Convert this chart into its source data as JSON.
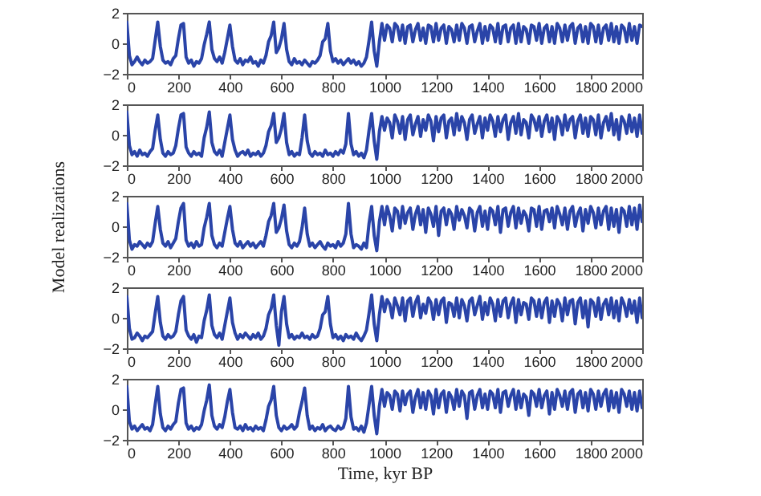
{
  "chart_data": [
    {
      "type": "line",
      "color": "#2a44a8",
      "xlim": [
        0,
        2000
      ],
      "ylim": [
        -2,
        2
      ],
      "xticks": [
        0,
        200,
        400,
        600,
        800,
        1000,
        1200,
        1400,
        1600,
        1800,
        2000
      ],
      "yticks": [
        -2,
        0,
        2
      ],
      "x": [
        0,
        10,
        20,
        30,
        40,
        50,
        60,
        70,
        80,
        90,
        100,
        110,
        120,
        130,
        140,
        150,
        160,
        170,
        180,
        190,
        200,
        210,
        220,
        230,
        240,
        250,
        260,
        270,
        280,
        290,
        300,
        310,
        320,
        330,
        340,
        350,
        360,
        370,
        380,
        390,
        400,
        410,
        420,
        430,
        440,
        450,
        460,
        470,
        480,
        490,
        500,
        510,
        520,
        530,
        540,
        550,
        560,
        570,
        580,
        590,
        600,
        610,
        620,
        630,
        640,
        650,
        660,
        670,
        680,
        690,
        700,
        710,
        720,
        730,
        740,
        750,
        760,
        770,
        780,
        790,
        800,
        810,
        820,
        830,
        840,
        850,
        860,
        870,
        880,
        890,
        900,
        910,
        920,
        930,
        940,
        950,
        960,
        970,
        980,
        990,
        1000,
        1010,
        1020,
        1030,
        1040,
        1050,
        1060,
        1070,
        1080,
        1090,
        1100,
        1110,
        1120,
        1130,
        1140,
        1150,
        1160,
        1170,
        1180,
        1190,
        1200,
        1210,
        1220,
        1230,
        1240,
        1250,
        1260,
        1270,
        1280,
        1290,
        1300,
        1310,
        1320,
        1330,
        1340,
        1350,
        1360,
        1370,
        1380,
        1390,
        1400,
        1410,
        1420,
        1430,
        1440,
        1450,
        1460,
        1470,
        1480,
        1490,
        1500,
        1510,
        1520,
        1530,
        1540,
        1550,
        1560,
        1570,
        1580,
        1590,
        1600,
        1610,
        1620,
        1630,
        1640,
        1650,
        1660,
        1670,
        1680,
        1690,
        1700,
        1710,
        1720,
        1730,
        1740,
        1750,
        1760,
        1770,
        1780,
        1790,
        1800,
        1810,
        1820,
        1830,
        1840,
        1850,
        1860,
        1870,
        1880,
        1890,
        1900,
        1910,
        1920,
        1930,
        1940,
        1950,
        1960,
        1970,
        1980,
        1990,
        2000
      ],
      "values": [
        1.4,
        -0.8,
        -1.4,
        -1.2,
        -0.9,
        -1.2,
        -1.4,
        -1.1,
        -1.3,
        -1.2,
        -1.0,
        0.2,
        1.4,
        -0.2,
        -1.1,
        -1.3,
        -1.2,
        -1.4,
        -1.0,
        -0.8,
        0.3,
        1.2,
        1.3,
        -0.9,
        -1.3,
        -1.1,
        -1.5,
        -1.2,
        -1.3,
        -1.0,
        -0.1,
        0.6,
        1.4,
        -0.4,
        -1.0,
        -1.2,
        -0.9,
        -1.3,
        -0.6,
        0.3,
        1.2,
        -0.2,
        -1.1,
        -1.3,
        -1.0,
        -1.4,
        -1.1,
        -1.2,
        -0.9,
        -1.3,
        -1.2,
        -1.5,
        -1.1,
        -1.3,
        -0.8,
        0.1,
        0.5,
        1.4,
        -0.6,
        -0.3,
        0.3,
        1.3,
        -0.4,
        -1.2,
        -1.4,
        -1.0,
        -1.3,
        -1.2,
        -1.4,
        -1.1,
        -1.3,
        -1.5,
        -1.2,
        -1.3,
        -1.1,
        -0.8,
        0.1,
        0.3,
        1.3,
        -0.5,
        -1.2,
        -1.0,
        -1.3,
        -1.1,
        -1.4,
        -1.2,
        -1.0,
        -1.3,
        -1.1,
        -1.4,
        -1.2,
        -1.5,
        -1.3,
        -0.9,
        0.2,
        1.4,
        -0.5,
        -1.5,
        0.1,
        1.3,
        0.2,
        1.2,
        1.0,
        0.1,
        1.3,
        1.1,
        0.2,
        1.2,
        0.0,
        1.1,
        1.2,
        0.1,
        0.9,
        1.3,
        0.2,
        1.0,
        0.0,
        1.2,
        1.1,
        0.1,
        1.3,
        0.2,
        1.0,
        1.2,
        0.0,
        1.1,
        0.9,
        0.1,
        1.2,
        0.2,
        1.3,
        1.0,
        0.0,
        1.1,
        1.2,
        0.1,
        0.8,
        1.3,
        0.0,
        1.1,
        0.2,
        1.2,
        1.0,
        0.1,
        1.3,
        0.0,
        1.1,
        1.2,
        0.1,
        1.0,
        1.2,
        0.0,
        1.3,
        0.1,
        1.1,
        0.9,
        0.0,
        1.2,
        1.1,
        0.2,
        1.3,
        0.0,
        1.0,
        1.2,
        0.1,
        1.1,
        0.0,
        1.3,
        1.0,
        0.1,
        1.2,
        0.2,
        1.1,
        1.3,
        0.0,
        1.0,
        1.2,
        0.1,
        1.1,
        0.0,
        1.3,
        1.1,
        0.1,
        1.2,
        0.0,
        1.0,
        1.2,
        0.2,
        1.3,
        0.1,
        1.1,
        0.0,
        1.2,
        1.0,
        0.1,
        1.3,
        0.2,
        1.1,
        0.0,
        1.2,
        1.1
      ]
    },
    {
      "type": "line",
      "color": "#2a44a8",
      "xlim": [
        0,
        2000
      ],
      "ylim": [
        -2,
        2
      ],
      "xticks": [
        0,
        200,
        400,
        600,
        800,
        1000,
        1200,
        1400,
        1600,
        1800,
        2000
      ],
      "yticks": [
        -2,
        0,
        2
      ],
      "x": [
        0,
        10,
        20,
        30,
        40,
        50,
        60,
        70,
        80,
        90,
        100,
        110,
        120,
        130,
        140,
        150,
        160,
        170,
        180,
        190,
        200,
        210,
        220,
        230,
        240,
        250,
        260,
        270,
        280,
        290,
        300,
        310,
        320,
        330,
        340,
        350,
        360,
        370,
        380,
        390,
        400,
        410,
        420,
        430,
        440,
        450,
        460,
        470,
        480,
        490,
        500,
        510,
        520,
        530,
        540,
        550,
        560,
        570,
        580,
        590,
        600,
        610,
        620,
        630,
        640,
        650,
        660,
        670,
        680,
        690,
        700,
        710,
        720,
        730,
        740,
        750,
        760,
        770,
        780,
        790,
        800,
        810,
        820,
        830,
        840,
        850,
        860,
        870,
        880,
        890,
        900,
        910,
        920,
        930,
        940,
        950,
        960,
        970,
        980,
        990,
        1000,
        1010,
        1020,
        1030,
        1040,
        1050,
        1060,
        1070,
        1080,
        1090,
        1100,
        1110,
        1120,
        1130,
        1140,
        1150,
        1160,
        1170,
        1180,
        1190,
        1200,
        1210,
        1220,
        1230,
        1240,
        1250,
        1260,
        1270,
        1280,
        1290,
        1300,
        1310,
        1320,
        1330,
        1340,
        1350,
        1360,
        1370,
        1380,
        1390,
        1400,
        1410,
        1420,
        1430,
        1440,
        1450,
        1460,
        1470,
        1480,
        1490,
        1500,
        1510,
        1520,
        1530,
        1540,
        1550,
        1560,
        1570,
        1580,
        1590,
        1600,
        1610,
        1620,
        1630,
        1640,
        1650,
        1660,
        1670,
        1680,
        1690,
        1700,
        1710,
        1720,
        1730,
        1740,
        1750,
        1760,
        1770,
        1780,
        1790,
        1800,
        1810,
        1820,
        1830,
        1840,
        1850,
        1860,
        1870,
        1880,
        1890,
        1900,
        1910,
        1920,
        1930,
        1940,
        1950,
        1960,
        1970,
        1980,
        1990,
        2000
      ],
      "values": [
        1.5,
        -0.7,
        -1.3,
        -1.1,
        -1.4,
        -1.0,
        -1.3,
        -1.2,
        -1.4,
        -1.1,
        -0.9,
        0.3,
        1.3,
        -0.3,
        -1.2,
        -1.4,
        -1.1,
        -1.3,
        -1.2,
        -0.7,
        0.4,
        1.3,
        1.4,
        -0.8,
        -1.2,
        -1.4,
        -1.1,
        -1.3,
        -1.2,
        -1.4,
        -0.2,
        0.5,
        1.5,
        -0.5,
        -1.1,
        -1.3,
        -1.0,
        -1.4,
        -0.5,
        0.4,
        1.3,
        -0.3,
        -1.0,
        -1.4,
        -1.2,
        -1.1,
        -1.3,
        -1.0,
        -1.4,
        -1.2,
        -1.3,
        -1.1,
        -1.4,
        -1.2,
        -0.7,
        0.2,
        0.6,
        1.4,
        -0.5,
        -0.2,
        0.4,
        1.4,
        -0.5,
        -1.3,
        -1.1,
        -1.4,
        -1.2,
        -1.3,
        -0.2,
        1.3,
        -0.4,
        -1.2,
        -1.4,
        -1.1,
        -1.3,
        -1.2,
        -1.4,
        -1.0,
        -1.3,
        -1.2,
        -1.4,
        -1.1,
        -1.3,
        -1.0,
        -1.2,
        -0.6,
        1.4,
        -0.6,
        -1.3,
        -1.1,
        -1.4,
        -1.2,
        -1.5,
        -1.0,
        0.3,
        1.4,
        -0.4,
        -1.6,
        0.2,
        1.2,
        0.3,
        1.1,
        0.8,
        -0.2,
        1.3,
        0.9,
        0.1,
        1.2,
        -0.3,
        1.0,
        1.3,
        0.0,
        0.7,
        1.2,
        -0.1,
        1.0,
        0.3,
        1.3,
        0.9,
        -0.4,
        1.2,
        0.2,
        1.1,
        1.3,
        -0.2,
        0.9,
        1.1,
        0.0,
        1.4,
        0.3,
        1.2,
        0.8,
        -0.3,
        1.0,
        1.3,
        0.1,
        0.7,
        1.2,
        -0.2,
        1.1,
        0.3,
        1.3,
        0.9,
        -0.1,
        1.2,
        0.2,
        1.0,
        1.3,
        -0.3,
        0.8,
        1.2,
        0.1,
        1.4,
        0.0,
        1.0,
        0.8,
        -0.2,
        1.3,
        1.0,
        0.3,
        1.2,
        -0.1,
        0.9,
        1.3,
        0.2,
        1.1,
        -0.3,
        1.2,
        0.9,
        0.0,
        1.3,
        0.3,
        1.0,
        1.2,
        -0.2,
        0.9,
        1.3,
        0.1,
        1.1,
        -0.1,
        1.2,
        1.0,
        0.0,
        1.3,
        -0.2,
        0.8,
        1.2,
        0.3,
        1.4,
        0.0,
        1.0,
        -0.3,
        1.2,
        0.9,
        0.1,
        1.3,
        0.2,
        1.1,
        -0.1,
        1.3,
        0.1
      ]
    },
    {
      "type": "line",
      "color": "#2a44a8",
      "xlim": [
        0,
        2000
      ],
      "ylim": [
        -2,
        2
      ],
      "xticks": [
        0,
        200,
        400,
        600,
        800,
        1000,
        1200,
        1400,
        1600,
        1800,
        2000
      ],
      "yticks": [
        -2,
        0,
        2
      ],
      "ylabel": "Model realizations",
      "x": [
        0,
        10,
        20,
        30,
        40,
        50,
        60,
        70,
        80,
        90,
        100,
        110,
        120,
        130,
        140,
        150,
        160,
        170,
        180,
        190,
        200,
        210,
        220,
        230,
        240,
        250,
        260,
        270,
        280,
        290,
        300,
        310,
        320,
        330,
        340,
        350,
        360,
        370,
        380,
        390,
        400,
        410,
        420,
        430,
        440,
        450,
        460,
        470,
        480,
        490,
        500,
        510,
        520,
        530,
        540,
        550,
        560,
        570,
        580,
        590,
        600,
        610,
        620,
        630,
        640,
        650,
        660,
        670,
        680,
        690,
        700,
        710,
        720,
        730,
        740,
        750,
        760,
        770,
        780,
        790,
        800,
        810,
        820,
        830,
        840,
        850,
        860,
        870,
        880,
        890,
        900,
        910,
        920,
        930,
        940,
        950,
        960,
        970,
        980,
        990,
        1000,
        1010,
        1020,
        1030,
        1040,
        1050,
        1060,
        1070,
        1080,
        1090,
        1100,
        1110,
        1120,
        1130,
        1140,
        1150,
        1160,
        1170,
        1180,
        1190,
        1200,
        1210,
        1220,
        1230,
        1240,
        1250,
        1260,
        1270,
        1280,
        1290,
        1300,
        1310,
        1320,
        1330,
        1340,
        1350,
        1360,
        1370,
        1380,
        1390,
        1400,
        1410,
        1420,
        1430,
        1440,
        1450,
        1460,
        1470,
        1480,
        1490,
        1500,
        1510,
        1520,
        1530,
        1540,
        1550,
        1560,
        1570,
        1580,
        1590,
        1600,
        1610,
        1620,
        1630,
        1640,
        1650,
        1660,
        1670,
        1680,
        1690,
        1700,
        1710,
        1720,
        1730,
        1740,
        1750,
        1760,
        1770,
        1780,
        1790,
        1800,
        1810,
        1820,
        1830,
        1840,
        1850,
        1860,
        1870,
        1880,
        1890,
        1900,
        1910,
        1920,
        1930,
        1940,
        1950,
        1960,
        1970,
        1980,
        1990,
        2000
      ],
      "values": [
        1.5,
        -0.9,
        -1.5,
        -1.2,
        -1.3,
        -1.0,
        -1.2,
        -1.4,
        -1.1,
        -1.3,
        -1.0,
        0.2,
        1.3,
        -0.2,
        -1.1,
        -1.3,
        -1.0,
        -1.4,
        -1.1,
        -0.8,
        0.3,
        1.2,
        1.5,
        -0.9,
        -1.3,
        -1.1,
        -1.4,
        -1.0,
        -1.3,
        -1.2,
        -0.1,
        0.6,
        1.5,
        -0.6,
        -1.2,
        -1.4,
        -1.1,
        -1.3,
        -0.4,
        0.5,
        1.3,
        -0.2,
        -1.1,
        -1.3,
        -1.0,
        -1.4,
        -1.2,
        -1.0,
        -1.3,
        -1.1,
        -1.4,
        -1.2,
        -1.0,
        -1.3,
        -0.6,
        0.3,
        0.7,
        1.5,
        -0.4,
        -0.1,
        0.5,
        1.4,
        -0.3,
        -1.2,
        -1.4,
        -1.1,
        -1.3,
        -1.0,
        -0.1,
        1.2,
        -0.5,
        -1.3,
        -1.1,
        -1.4,
        -1.2,
        -1.0,
        -1.3,
        -1.5,
        -1.1,
        -1.3,
        -1.2,
        -1.4,
        -1.0,
        -1.3,
        -1.1,
        -0.5,
        1.5,
        -0.5,
        -1.4,
        -1.2,
        -1.3,
        -1.5,
        -1.1,
        -1.4,
        0.2,
        1.3,
        -0.6,
        -1.6,
        0.3,
        1.3,
        0.1,
        1.3,
        0.7,
        -0.3,
        1.2,
        1.0,
        -0.1,
        1.3,
        0.2,
        0.9,
        1.2,
        -0.2,
        0.8,
        1.3,
        0.1,
        1.1,
        -0.4,
        1.2,
        0.8,
        0.0,
        1.3,
        -0.6,
        1.0,
        1.2,
        0.1,
        1.1,
        0.8,
        -0.2,
        1.3,
        0.4,
        1.1,
        0.7,
        -0.1,
        1.2,
        1.0,
        -0.3,
        0.9,
        1.3,
        0.0,
        1.0,
        -0.2,
        1.2,
        1.0,
        0.1,
        1.3,
        -0.4,
        1.1,
        1.2,
        0.0,
        0.9,
        1.3,
        -0.1,
        1.2,
        0.2,
        1.0,
        0.7,
        -0.3,
        1.2,
        1.1,
        0.0,
        1.3,
        -0.2,
        1.0,
        1.1,
        0.3,
        1.2,
        -0.1,
        1.3,
        0.8,
        0.1,
        1.2,
        -0.2,
        1.0,
        1.3,
        0.0,
        0.8,
        1.2,
        -0.3,
        1.1,
        0.2,
        1.3,
        0.9,
        -0.1,
        1.2,
        0.1,
        1.0,
        1.3,
        -0.2,
        1.2,
        0.0,
        1.1,
        -0.4,
        1.2,
        1.0,
        0.0,
        1.3,
        0.1,
        1.2,
        -0.2,
        1.4,
        0.3
      ]
    },
    {
      "type": "line",
      "color": "#2a44a8",
      "xlim": [
        0,
        2000
      ],
      "ylim": [
        -2,
        2
      ],
      "xticks": [
        0,
        200,
        400,
        600,
        800,
        1000,
        1200,
        1400,
        1600,
        1800,
        2000
      ],
      "yticks": [
        -2,
        0,
        2
      ],
      "x": [
        0,
        10,
        20,
        30,
        40,
        50,
        60,
        70,
        80,
        90,
        100,
        110,
        120,
        130,
        140,
        150,
        160,
        170,
        180,
        190,
        200,
        210,
        220,
        230,
        240,
        250,
        260,
        270,
        280,
        290,
        300,
        310,
        320,
        330,
        340,
        350,
        360,
        370,
        380,
        390,
        400,
        410,
        420,
        430,
        440,
        450,
        460,
        470,
        480,
        490,
        500,
        510,
        520,
        530,
        540,
        550,
        560,
        570,
        580,
        590,
        600,
        610,
        620,
        630,
        640,
        650,
        660,
        670,
        680,
        690,
        700,
        710,
        720,
        730,
        740,
        750,
        760,
        770,
        780,
        790,
        800,
        810,
        820,
        830,
        840,
        850,
        860,
        870,
        880,
        890,
        900,
        910,
        920,
        930,
        940,
        950,
        960,
        970,
        980,
        990,
        1000,
        1010,
        1020,
        1030,
        1040,
        1050,
        1060,
        1070,
        1080,
        1090,
        1100,
        1110,
        1120,
        1130,
        1140,
        1150,
        1160,
        1170,
        1180,
        1190,
        1200,
        1210,
        1220,
        1230,
        1240,
        1250,
        1260,
        1270,
        1280,
        1290,
        1300,
        1310,
        1320,
        1330,
        1340,
        1350,
        1360,
        1370,
        1380,
        1390,
        1400,
        1410,
        1420,
        1430,
        1440,
        1450,
        1460,
        1470,
        1480,
        1490,
        1500,
        1510,
        1520,
        1530,
        1540,
        1550,
        1560,
        1570,
        1580,
        1590,
        1600,
        1610,
        1620,
        1630,
        1640,
        1650,
        1660,
        1670,
        1680,
        1690,
        1700,
        1710,
        1720,
        1730,
        1740,
        1750,
        1760,
        1770,
        1780,
        1790,
        1800,
        1810,
        1820,
        1830,
        1840,
        1850,
        1860,
        1870,
        1880,
        1890,
        1900,
        1910,
        1920,
        1930,
        1940,
        1950,
        1960,
        1970,
        1980,
        1990,
        2000
      ],
      "values": [
        1.4,
        -0.7,
        -1.4,
        -1.3,
        -1.0,
        -1.2,
        -1.5,
        -1.2,
        -1.3,
        -1.1,
        -0.9,
        0.3,
        1.4,
        -0.3,
        -1.2,
        -1.4,
        -1.1,
        -1.3,
        -1.2,
        -0.9,
        0.2,
        1.1,
        1.4,
        -0.8,
        -1.2,
        -1.4,
        -1.1,
        -1.6,
        -1.2,
        -1.3,
        -0.2,
        0.5,
        1.5,
        -0.5,
        -1.1,
        -1.3,
        -1.0,
        -1.4,
        -0.5,
        0.4,
        1.3,
        -0.3,
        -1.0,
        -1.4,
        -1.1,
        -1.3,
        -1.0,
        -1.2,
        -1.4,
        -1.1,
        -1.3,
        -1.0,
        -1.4,
        -1.2,
        -0.7,
        0.2,
        0.6,
        1.5,
        -0.5,
        -1.8,
        0.4,
        1.4,
        -0.4,
        -1.3,
        -1.1,
        -1.4,
        -1.2,
        -1.3,
        -1.0,
        -1.3,
        -1.2,
        -1.4,
        -1.1,
        -1.3,
        -1.2,
        -0.7,
        0.2,
        0.4,
        1.4,
        -0.4,
        -1.3,
        -1.1,
        -1.4,
        -1.2,
        -1.5,
        -1.1,
        -1.3,
        -1.2,
        -1.4,
        -1.0,
        -1.3,
        -1.5,
        -1.2,
        -0.8,
        0.3,
        1.5,
        -0.4,
        -1.5,
        0.2,
        1.4,
        0.4,
        1.2,
        0.9,
        0.0,
        1.3,
        0.8,
        0.2,
        1.3,
        -0.2,
        1.1,
        1.3,
        0.1,
        1.0,
        1.4,
        0.0,
        0.9,
        0.3,
        1.3,
        1.0,
        -0.1,
        1.2,
        0.2,
        1.1,
        1.3,
        -0.3,
        1.0,
        0.9,
        0.1,
        1.3,
        0.0,
        1.2,
        0.8,
        -0.2,
        1.1,
        1.3,
        0.2,
        0.8,
        1.4,
        -0.1,
        1.0,
        0.2,
        1.3,
        0.9,
        -0.2,
        1.2,
        0.1,
        1.1,
        1.3,
        0.0,
        0.9,
        1.3,
        -0.3,
        1.2,
        0.2,
        1.0,
        0.9,
        -0.1,
        1.3,
        1.1,
        0.1,
        1.2,
        0.0,
        1.0,
        1.3,
        -0.3,
        1.1,
        0.1,
        1.2,
        0.9,
        -0.2,
        1.3,
        0.2,
        1.1,
        1.2,
        -0.4,
        1.0,
        1.3,
        0.0,
        1.1,
        -0.6,
        1.2,
        1.0,
        0.1,
        1.3,
        -0.1,
        0.9,
        1.2,
        0.2,
        1.3,
        0.0,
        1.1,
        -0.2,
        1.3,
        0.9,
        0.1,
        1.2,
        0.3,
        1.1,
        -0.3,
        1.3,
        0.0
      ]
    },
    {
      "type": "line",
      "color": "#2a44a8",
      "xlim": [
        0,
        2000
      ],
      "ylim": [
        -2,
        2
      ],
      "xticks": [
        0,
        200,
        400,
        600,
        800,
        1000,
        1200,
        1400,
        1600,
        1800,
        2000
      ],
      "yticks": [
        -2,
        0,
        2
      ],
      "xlabel": "Time, kyr BP",
      "x": [
        0,
        10,
        20,
        30,
        40,
        50,
        60,
        70,
        80,
        90,
        100,
        110,
        120,
        130,
        140,
        150,
        160,
        170,
        180,
        190,
        200,
        210,
        220,
        230,
        240,
        250,
        260,
        270,
        280,
        290,
        300,
        310,
        320,
        330,
        340,
        350,
        360,
        370,
        380,
        390,
        400,
        410,
        420,
        430,
        440,
        450,
        460,
        470,
        480,
        490,
        500,
        510,
        520,
        530,
        540,
        550,
        560,
        570,
        580,
        590,
        600,
        610,
        620,
        630,
        640,
        650,
        660,
        670,
        680,
        690,
        700,
        710,
        720,
        730,
        740,
        750,
        760,
        770,
        780,
        790,
        800,
        810,
        820,
        830,
        840,
        850,
        860,
        870,
        880,
        890,
        900,
        910,
        920,
        930,
        940,
        950,
        960,
        970,
        980,
        990,
        1000,
        1010,
        1020,
        1030,
        1040,
        1050,
        1060,
        1070,
        1080,
        1090,
        1100,
        1110,
        1120,
        1130,
        1140,
        1150,
        1160,
        1170,
        1180,
        1190,
        1200,
        1210,
        1220,
        1230,
        1240,
        1250,
        1260,
        1270,
        1280,
        1290,
        1300,
        1310,
        1320,
        1330,
        1340,
        1350,
        1360,
        1370,
        1380,
        1390,
        1400,
        1410,
        1420,
        1430,
        1440,
        1450,
        1460,
        1470,
        1480,
        1490,
        1500,
        1510,
        1520,
        1530,
        1540,
        1550,
        1560,
        1570,
        1580,
        1590,
        1600,
        1610,
        1620,
        1630,
        1640,
        1650,
        1660,
        1670,
        1680,
        1690,
        1700,
        1710,
        1720,
        1730,
        1740,
        1750,
        1760,
        1770,
        1780,
        1790,
        1800,
        1810,
        1820,
        1830,
        1840,
        1850,
        1860,
        1870,
        1880,
        1890,
        1900,
        1910,
        1920,
        1930,
        1940,
        1950,
        1960,
        1970,
        1980,
        1990,
        2000
      ],
      "values": [
        1.5,
        -0.8,
        -1.3,
        -1.1,
        -1.4,
        -1.2,
        -1.0,
        -1.3,
        -1.2,
        -1.4,
        -1.0,
        0.3,
        1.5,
        -0.3,
        -1.2,
        -1.4,
        -1.1,
        -1.3,
        -1.0,
        -0.8,
        0.4,
        1.3,
        1.4,
        -0.9,
        -1.3,
        -1.1,
        -1.4,
        -1.2,
        -1.3,
        -1.0,
        -0.1,
        0.6,
        1.6,
        -0.4,
        -1.1,
        -1.3,
        -1.0,
        -1.2,
        -0.5,
        0.5,
        1.3,
        -0.2,
        -1.2,
        -1.3,
        -1.1,
        -1.4,
        -1.0,
        -1.3,
        -1.2,
        -1.4,
        -1.1,
        -1.3,
        -1.2,
        -1.4,
        -0.7,
        0.2,
        0.6,
        1.5,
        -0.4,
        -1.2,
        -1.4,
        -1.1,
        -1.3,
        -1.2,
        -1.0,
        -1.3,
        -1.1,
        -0.2,
        0.5,
        1.4,
        -0.4,
        -1.3,
        -1.1,
        -1.4,
        -1.2,
        -1.3,
        -1.0,
        -1.4,
        -1.2,
        -1.1,
        -1.3,
        -1.4,
        -1.1,
        -1.3,
        -1.2,
        -0.6,
        1.5,
        -0.5,
        -1.3,
        -1.2,
        -1.4,
        -1.1,
        -1.5,
        -0.9,
        0.3,
        1.5,
        -0.4,
        -1.6,
        0.2,
        1.3,
        0.2,
        1.1,
        0.9,
        0.0,
        1.2,
        1.0,
        -0.1,
        1.2,
        0.3,
        1.0,
        1.2,
        -0.2,
        0.8,
        1.3,
        0.1,
        1.1,
        0.0,
        1.2,
        0.9,
        -0.3,
        1.3,
        0.1,
        1.0,
        1.2,
        -0.2,
        1.1,
        0.8,
        0.0,
        1.3,
        0.2,
        1.2,
        0.9,
        -0.6,
        1.1,
        1.2,
        0.0,
        0.9,
        1.3,
        0.1,
        1.0,
        0.0,
        1.2,
        1.0,
        0.1,
        1.3,
        -0.2,
        1.1,
        1.2,
        0.2,
        0.9,
        1.3,
        0.0,
        1.2,
        0.1,
        1.0,
        0.8,
        -0.4,
        1.2,
        1.0,
        0.2,
        1.3,
        0.1,
        0.9,
        1.2,
        -0.3,
        1.1,
        0.0,
        1.3,
        0.9,
        0.2,
        1.2,
        0.0,
        1.1,
        1.3,
        -0.2,
        1.0,
        1.2,
        0.1,
        1.1,
        -0.1,
        1.3,
        1.0,
        0.0,
        1.2,
        0.2,
        1.0,
        1.3,
        -0.1,
        1.2,
        0.1,
        1.1,
        -0.2,
        1.3,
        1.0,
        0.2,
        1.2,
        0.0,
        1.1,
        -0.1,
        1.2,
        0.1
      ]
    }
  ]
}
